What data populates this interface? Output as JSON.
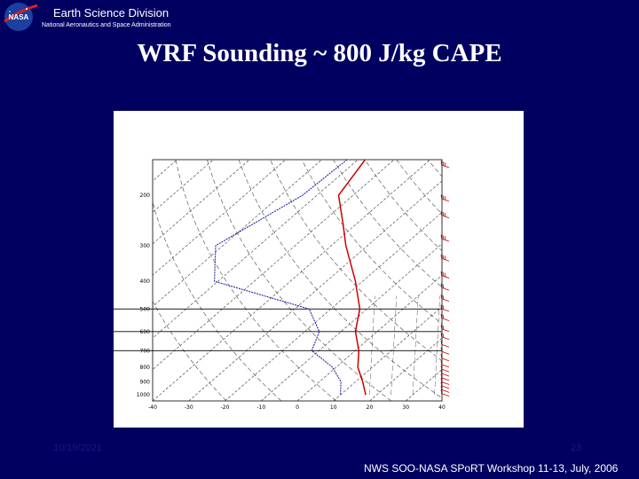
{
  "header": {
    "org_title": "Earth Science Division",
    "org_subtitle": "National Aeronautics and Space Administration",
    "logo_text": "NASA"
  },
  "slide": {
    "title": "WRF Sounding ~ 800 J/kg CAPE"
  },
  "footer": {
    "date": "10/19/2021",
    "page": "23",
    "event": "NWS SOO-NASA SPoRT Workshop 11-13, July, 2006"
  },
  "colors": {
    "background": "#000060",
    "temperature": "#cc0000",
    "dewpoint": "#2222aa",
    "wind_barbs": "#cc0000"
  },
  "chart_data": {
    "type": "skew-t",
    "pressure_levels": [
      "200",
      "300",
      "400",
      "500",
      "600",
      "700",
      "800",
      "900",
      "1000"
    ],
    "temperature_ticks": [
      "-40",
      "-30",
      "-20",
      "-10",
      "0",
      "10",
      "20",
      "30",
      "40"
    ],
    "temperature_profile": [
      {
        "p": 150,
        "t": -58
      },
      {
        "p": 200,
        "t": -54
      },
      {
        "p": 250,
        "t": -44
      },
      {
        "p": 300,
        "t": -36
      },
      {
        "p": 400,
        "t": -22
      },
      {
        "p": 500,
        "t": -12
      },
      {
        "p": 600,
        "t": -6
      },
      {
        "p": 700,
        "t": 1
      },
      {
        "p": 800,
        "t": 6
      },
      {
        "p": 900,
        "t": 12
      },
      {
        "p": 1000,
        "t": 17
      }
    ],
    "dewpoint_profile": [
      {
        "p": 150,
        "t": -63
      },
      {
        "p": 200,
        "t": -64
      },
      {
        "p": 300,
        "t": -72
      },
      {
        "p": 400,
        "t": -61
      },
      {
        "p": 500,
        "t": -26
      },
      {
        "p": 600,
        "t": -16
      },
      {
        "p": 700,
        "t": -12
      },
      {
        "p": 800,
        "t": -1
      },
      {
        "p": 900,
        "t": 6
      },
      {
        "p": 1000,
        "t": 10
      }
    ],
    "highlighted_levels": [
      500,
      600,
      700
    ],
    "grid": true
  }
}
